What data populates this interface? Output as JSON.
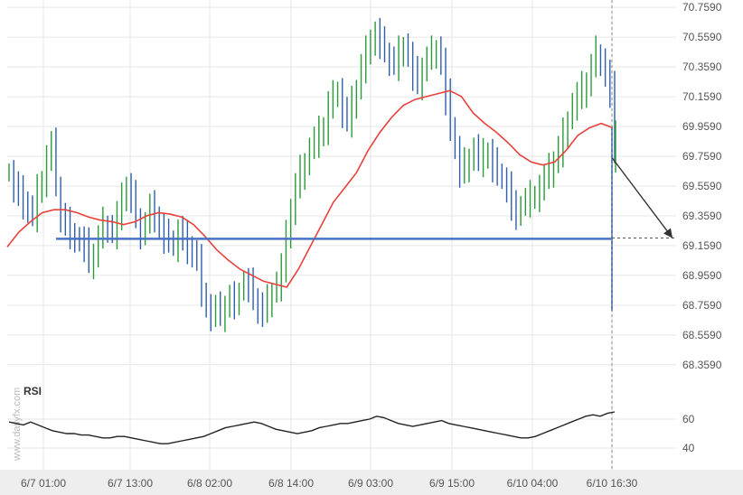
{
  "chart_data": {
    "type": "candlestick",
    "y_axis": {
      "ticks": [
        "70.7590",
        "70.5590",
        "70.3590",
        "70.1590",
        "69.9590",
        "69.7590",
        "69.5590",
        "69.3590",
        "69.1590",
        "68.9590",
        "68.7590",
        "68.5590",
        "68.3590"
      ],
      "range": [
        68.2,
        70.76
      ]
    },
    "x_axis": {
      "ticks": [
        "6/7 01:00",
        "6/7 13:00",
        "6/8 02:00",
        "6/8 14:00",
        "6/9 03:00",
        "6/9 15:00",
        "6/10 04:00",
        "6/10 16:30"
      ]
    },
    "price_series_close": [
      69.65,
      69.55,
      69.5,
      69.45,
      69.4,
      69.35,
      69.52,
      69.6,
      69.75,
      69.82,
      69.55,
      69.35,
      69.3,
      69.25,
      69.2,
      69.18,
      69.15,
      69.05,
      69.1,
      69.2,
      69.3,
      69.28,
      69.25,
      69.35,
      69.45,
      69.55,
      69.48,
      69.35,
      69.25,
      69.3,
      69.4,
      69.35,
      69.28,
      69.22,
      69.2,
      69.15,
      69.25,
      69.2,
      69.15,
      69.1,
      69.05,
      68.85,
      68.75,
      68.7,
      68.72,
      68.68,
      68.75,
      68.8,
      68.78,
      68.85,
      68.9,
      68.88,
      68.8,
      68.75,
      68.7,
      68.78,
      68.85,
      68.9,
      69.0,
      69.2,
      69.4,
      69.55,
      69.65,
      69.72,
      69.8,
      69.85,
      69.9,
      69.95,
      70.1,
      70.15,
      70.2,
      70.05,
      70.0,
      70.1,
      70.2,
      70.35,
      70.45,
      70.55,
      70.58,
      70.5,
      70.45,
      70.4,
      70.38,
      70.45,
      70.5,
      70.42,
      70.3,
      70.25,
      70.35,
      70.4,
      70.45,
      70.48,
      70.38,
      70.15,
      69.95,
      69.8,
      69.65,
      69.7,
      69.75,
      69.8,
      69.72,
      69.75,
      69.78,
      69.7,
      69.65,
      69.6,
      69.55,
      69.4,
      69.38,
      69.42,
      69.45,
      69.48,
      69.5,
      69.55,
      69.6,
      69.65,
      69.72,
      69.8,
      69.9,
      70.0,
      70.1,
      70.15,
      70.2,
      70.25,
      70.35,
      70.45,
      70.4,
      70.3,
      70.2,
      69.8
    ],
    "moving_average": {
      "color": "#e8413c",
      "values": [
        69.15,
        69.25,
        69.32,
        69.38,
        69.4,
        69.4,
        69.38,
        69.35,
        69.33,
        69.32,
        69.3,
        69.32,
        69.36,
        69.38,
        69.37,
        69.35,
        69.3,
        69.22,
        69.13,
        69.06,
        69.0,
        68.96,
        68.92,
        68.9,
        68.88,
        69.0,
        69.15,
        69.3,
        69.45,
        69.55,
        69.65,
        69.8,
        69.92,
        70.02,
        70.1,
        70.14,
        70.16,
        70.18,
        70.2,
        70.16,
        70.05,
        69.98,
        69.92,
        69.85,
        69.77,
        69.72,
        69.7,
        69.72,
        69.8,
        69.9,
        69.95,
        69.98,
        69.95
      ]
    },
    "horizontal_level": {
      "value": 69.205,
      "color": "#4a72c2"
    },
    "forecast_arrow": {
      "from": 69.75,
      "to": 69.21
    },
    "rsi": {
      "label": "RSI",
      "ticks": [
        "60",
        "40"
      ],
      "range": [
        30,
        75
      ],
      "values": [
        58,
        57,
        56,
        58,
        56,
        54,
        52,
        51,
        50,
        50,
        49,
        49,
        48,
        47,
        47,
        48,
        48,
        47,
        46,
        45,
        44,
        43,
        43,
        44,
        45,
        46,
        47,
        48,
        50,
        52,
        54,
        55,
        56,
        57,
        58,
        57,
        55,
        53,
        52,
        51,
        50,
        51,
        52,
        54,
        55,
        56,
        57,
        57,
        58,
        59,
        60,
        62,
        61,
        59,
        57,
        56,
        55,
        56,
        57,
        58,
        59,
        57,
        56,
        55,
        54,
        53,
        52,
        51,
        50,
        49,
        48,
        47,
        47,
        48,
        50,
        52,
        54,
        56,
        58,
        60,
        62,
        63,
        62,
        64,
        65
      ]
    }
  },
  "watermark": "www.dailyfx.com"
}
